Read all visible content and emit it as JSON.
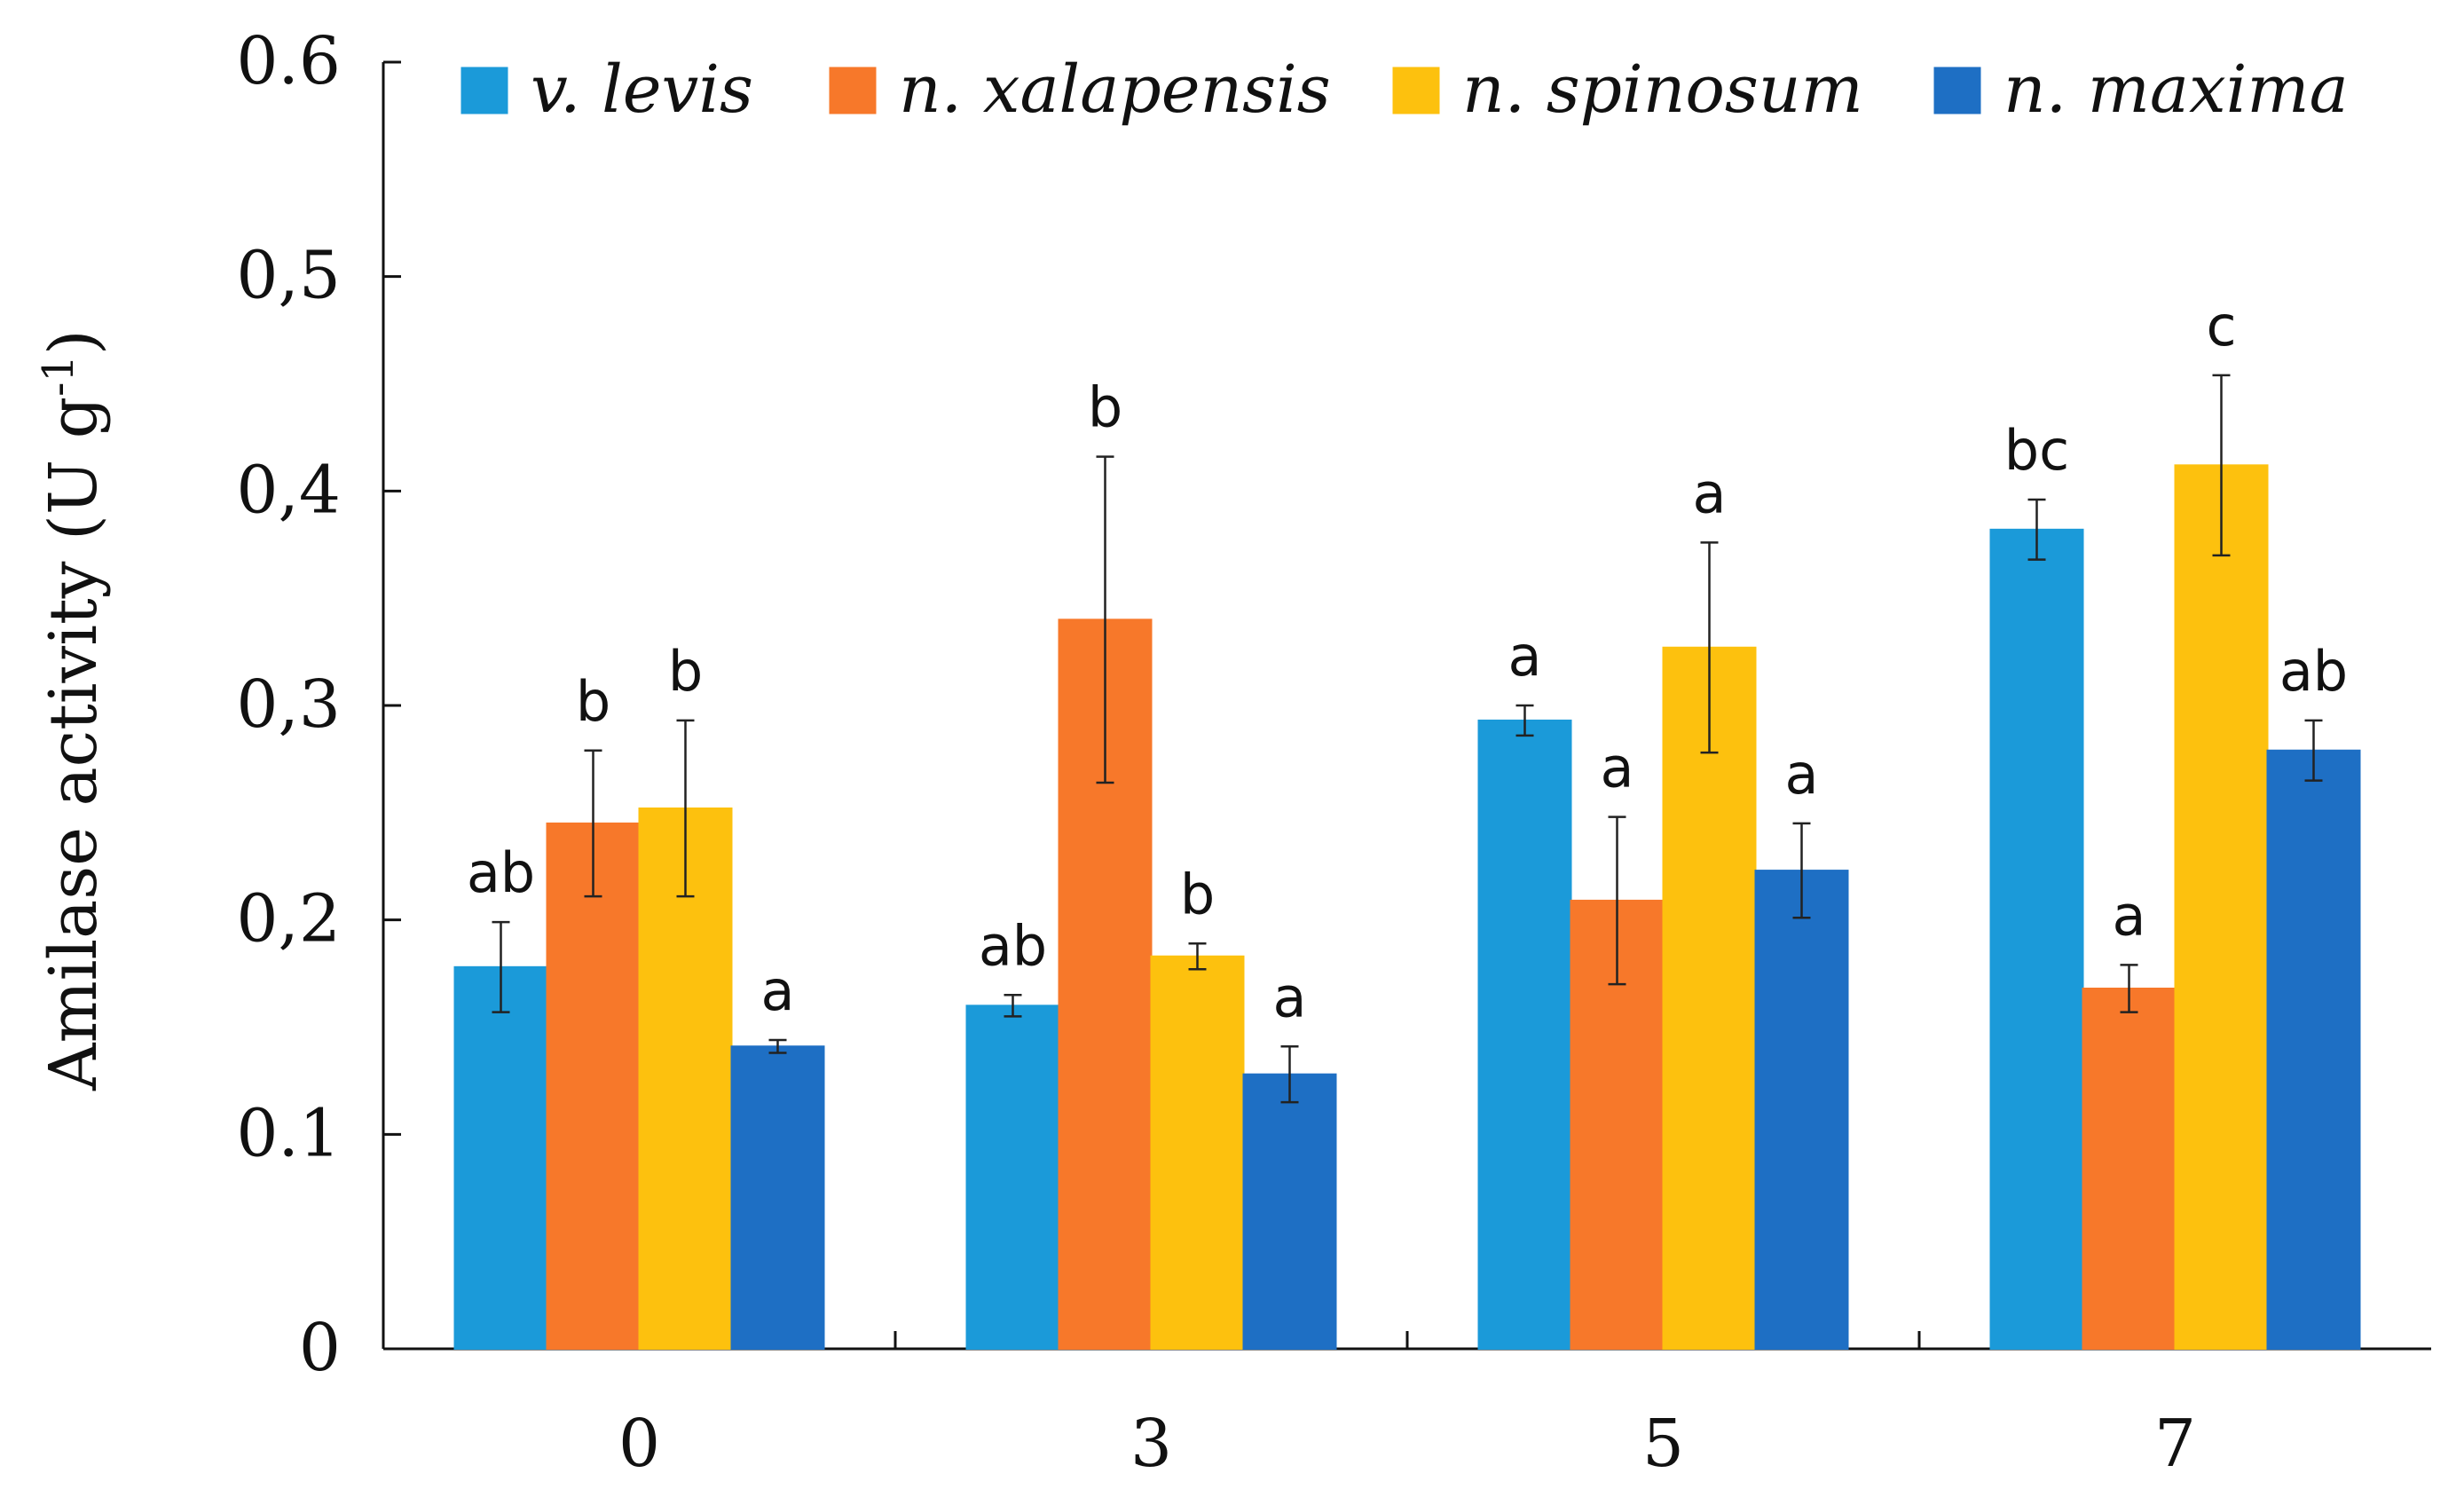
{
  "chart_data": {
    "type": "bar",
    "title": "",
    "xlabel": "",
    "ylabel": "Amilase activity (U g",
    "ylabel_sup": "-1",
    "ylabel_close": ")",
    "ylim": [
      0,
      0.6
    ],
    "yticks": [
      {
        "value": 0,
        "label": "0"
      },
      {
        "value": 0.1,
        "label": "0.1"
      },
      {
        "value": 0.2,
        "label": "0,2"
      },
      {
        "value": 0.3,
        "label": "0,3"
      },
      {
        "value": 0.4,
        "label": "0,4"
      },
      {
        "value": 0.5,
        "label": "0,5"
      },
      {
        "value": 0.6,
        "label": "0.6"
      }
    ],
    "grid": false,
    "legend_position": "top",
    "categories": [
      "0",
      "3",
      "5",
      "7"
    ],
    "series": [
      {
        "name": "v. levis",
        "color": "#1B9AD9",
        "values": [
          0.178,
          0.16,
          0.293,
          0.382
        ],
        "errors": [
          0.021,
          0.005,
          0.007,
          0.014
        ],
        "letters": [
          "ab",
          "ab",
          "a",
          "bc"
        ]
      },
      {
        "name": "n. xalapensis",
        "color": "#F7782A",
        "values": [
          0.245,
          0.34,
          0.209,
          0.168
        ],
        "errors": [
          0.034,
          0.076,
          0.039,
          0.011
        ],
        "letters": [
          "b",
          "b",
          "a",
          "a"
        ]
      },
      {
        "name": "n. spinosum",
        "color": "#FDC10E",
        "values": [
          0.252,
          0.183,
          0.327,
          0.412
        ],
        "errors": [
          0.041,
          0.006,
          0.049,
          0.042
        ],
        "letters": [
          "b",
          "b",
          "a",
          "c"
        ]
      },
      {
        "name": "n. maxima",
        "color": "#1E6FC4",
        "values": [
          0.141,
          0.128,
          0.223,
          0.279
        ],
        "errors": [
          0.003,
          0.013,
          0.022,
          0.014
        ],
        "letters": [
          "a",
          "a",
          "a",
          "ab"
        ]
      }
    ]
  }
}
